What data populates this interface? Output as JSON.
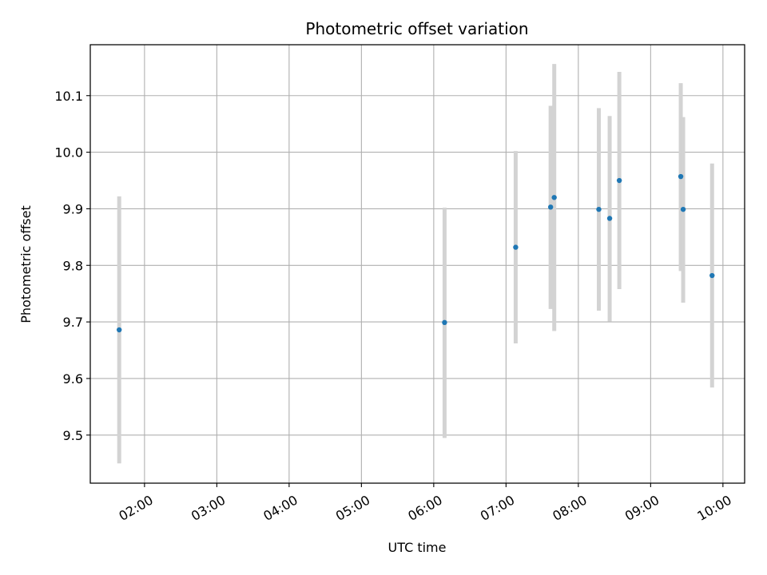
{
  "chart_data": {
    "type": "scatter",
    "title": "Photometric offset variation",
    "xlabel": "UTC time",
    "ylabel": "Photometric offset",
    "x_unit": "hours (UTC)",
    "xlim": [
      "01:15",
      "10:18"
    ],
    "ylim": [
      9.415,
      10.19
    ],
    "x_ticks": [
      "02:00",
      "03:00",
      "04:00",
      "05:00",
      "06:00",
      "07:00",
      "08:00",
      "09:00",
      "10:00"
    ],
    "y_ticks": [
      "9.5",
      "9.6",
      "9.7",
      "9.8",
      "9.9",
      "10.0",
      "10.1"
    ],
    "grid": true,
    "point_color": "#1f77b4",
    "errorbar_color": "#d3d3d3",
    "points": [
      {
        "t": "01:39",
        "y": 9.686,
        "lo": 9.45,
        "hi": 9.922
      },
      {
        "t": "06:09",
        "y": 9.699,
        "lo": 9.495,
        "hi": 9.902
      },
      {
        "t": "07:08",
        "y": 9.832,
        "lo": 9.662,
        "hi": 10.002
      },
      {
        "t": "07:37",
        "y": 9.903,
        "lo": 9.723,
        "hi": 10.082
      },
      {
        "t": "07:40",
        "y": 9.92,
        "lo": 9.684,
        "hi": 10.156
      },
      {
        "t": "08:17",
        "y": 9.899,
        "lo": 9.72,
        "hi": 10.078
      },
      {
        "t": "08:26",
        "y": 9.883,
        "lo": 9.701,
        "hi": 10.064
      },
      {
        "t": "08:34",
        "y": 9.95,
        "lo": 9.758,
        "hi": 10.142
      },
      {
        "t": "09:25",
        "y": 9.957,
        "lo": 9.79,
        "hi": 10.122
      },
      {
        "t": "09:27",
        "y": 9.899,
        "lo": 9.734,
        "hi": 10.062
      },
      {
        "t": "09:51",
        "y": 9.782,
        "lo": 9.584,
        "hi": 9.98
      }
    ]
  }
}
